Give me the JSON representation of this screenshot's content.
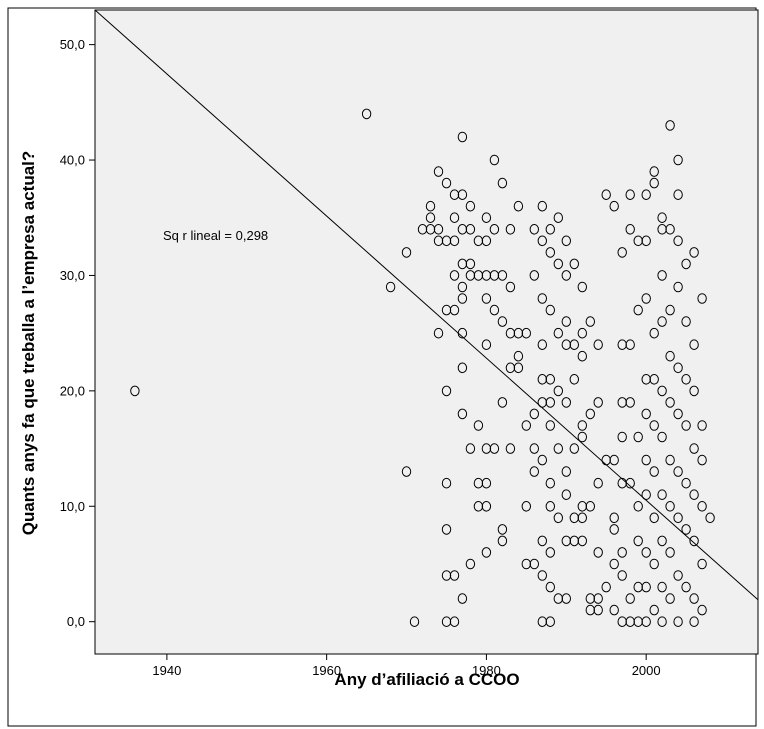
{
  "chart_data": {
    "type": "scatter",
    "title": "",
    "xlabel": "Any d’afiliació a CCOO",
    "ylabel": "Quants anys fa que treballa a l’empresa actual?",
    "xlim": [
      1931,
      2014
    ],
    "ylim": [
      -2.8,
      53.0
    ],
    "x_ticks": [
      {
        "value": 1940,
        "label": "1940"
      },
      {
        "value": 1960,
        "label": "1960"
      },
      {
        "value": 1980,
        "label": "1980"
      },
      {
        "value": 2000,
        "label": "2000"
      }
    ],
    "y_ticks": [
      {
        "value": 0,
        "label": "0,0"
      },
      {
        "value": 10,
        "label": "10,0"
      },
      {
        "value": 20,
        "label": "20,0"
      },
      {
        "value": 30,
        "label": "30,0"
      },
      {
        "value": 40,
        "label": "40,0"
      },
      {
        "value": 50,
        "label": "50,0"
      }
    ],
    "grid": false,
    "legend": "none",
    "annotation": "Sq r lineal = 0,298",
    "fit_line": {
      "x": [
        1931,
        2014
      ],
      "y": [
        53.0,
        1.9
      ]
    },
    "colors": {
      "plot_bg": "#f0f0f0",
      "marker_stroke": "#000000",
      "line": "#000000"
    },
    "points": [
      [
        1936,
        20
      ],
      [
        1965,
        44
      ],
      [
        1968,
        29
      ],
      [
        1970,
        32
      ],
      [
        1970,
        13
      ],
      [
        1971,
        0
      ],
      [
        1972,
        34
      ],
      [
        1973,
        35
      ],
      [
        1973,
        36
      ],
      [
        1973,
        34
      ],
      [
        1974,
        39
      ],
      [
        1974,
        34
      ],
      [
        1974,
        25
      ],
      [
        1974,
        33
      ],
      [
        1975,
        38
      ],
      [
        1975,
        33
      ],
      [
        1975,
        27
      ],
      [
        1975,
        20
      ],
      [
        1975,
        12
      ],
      [
        1975,
        8
      ],
      [
        1975,
        4
      ],
      [
        1975,
        0
      ],
      [
        1976,
        37
      ],
      [
        1976,
        35
      ],
      [
        1976,
        33
      ],
      [
        1976,
        30
      ],
      [
        1976,
        27
      ],
      [
        1976,
        4
      ],
      [
        1976,
        0
      ],
      [
        1977,
        42
      ],
      [
        1977,
        37
      ],
      [
        1977,
        34
      ],
      [
        1977,
        31
      ],
      [
        1977,
        29
      ],
      [
        1977,
        28
      ],
      [
        1977,
        25
      ],
      [
        1977,
        22
      ],
      [
        1977,
        18
      ],
      [
        1977,
        2
      ],
      [
        1978,
        36
      ],
      [
        1978,
        34
      ],
      [
        1978,
        31
      ],
      [
        1978,
        30
      ],
      [
        1978,
        15
      ],
      [
        1978,
        5
      ],
      [
        1979,
        33
      ],
      [
        1979,
        30
      ],
      [
        1979,
        17
      ],
      [
        1979,
        12
      ],
      [
        1979,
        10
      ],
      [
        1980,
        35
      ],
      [
        1980,
        33
      ],
      [
        1980,
        30
      ],
      [
        1980,
        28
      ],
      [
        1980,
        24
      ],
      [
        1980,
        15
      ],
      [
        1980,
        12
      ],
      [
        1980,
        10
      ],
      [
        1980,
        6
      ],
      [
        1981,
        40
      ],
      [
        1981,
        34
      ],
      [
        1981,
        30
      ],
      [
        1981,
        27
      ],
      [
        1981,
        15
      ],
      [
        1982,
        38
      ],
      [
        1982,
        30
      ],
      [
        1982,
        26
      ],
      [
        1982,
        19
      ],
      [
        1982,
        8
      ],
      [
        1982,
        7
      ],
      [
        1983,
        34
      ],
      [
        1983,
        29
      ],
      [
        1983,
        25
      ],
      [
        1983,
        22
      ],
      [
        1983,
        15
      ],
      [
        1984,
        36
      ],
      [
        1984,
        25
      ],
      [
        1984,
        23
      ],
      [
        1984,
        22
      ],
      [
        1985,
        25
      ],
      [
        1985,
        17
      ],
      [
        1985,
        10
      ],
      [
        1985,
        5
      ],
      [
        1986,
        34
      ],
      [
        1986,
        30
      ],
      [
        1986,
        18
      ],
      [
        1986,
        15
      ],
      [
        1986,
        13
      ],
      [
        1986,
        5
      ],
      [
        1987,
        36
      ],
      [
        1987,
        33
      ],
      [
        1987,
        28
      ],
      [
        1987,
        24
      ],
      [
        1987,
        21
      ],
      [
        1987,
        19
      ],
      [
        1987,
        14
      ],
      [
        1987,
        7
      ],
      [
        1987,
        4
      ],
      [
        1987,
        0
      ],
      [
        1988,
        34
      ],
      [
        1988,
        32
      ],
      [
        1988,
        27
      ],
      [
        1988,
        21
      ],
      [
        1988,
        19
      ],
      [
        1988,
        17
      ],
      [
        1988,
        12
      ],
      [
        1988,
        10
      ],
      [
        1988,
        6
      ],
      [
        1988,
        3
      ],
      [
        1988,
        0
      ],
      [
        1989,
        35
      ],
      [
        1989,
        31
      ],
      [
        1989,
        25
      ],
      [
        1989,
        20
      ],
      [
        1989,
        15
      ],
      [
        1989,
        9
      ],
      [
        1989,
        2
      ],
      [
        1990,
        33
      ],
      [
        1990,
        30
      ],
      [
        1990,
        26
      ],
      [
        1990,
        24
      ],
      [
        1990,
        19
      ],
      [
        1990,
        13
      ],
      [
        1990,
        11
      ],
      [
        1990,
        7
      ],
      [
        1990,
        2
      ],
      [
        1991,
        31
      ],
      [
        1991,
        24
      ],
      [
        1991,
        21
      ],
      [
        1991,
        15
      ],
      [
        1991,
        9
      ],
      [
        1991,
        7
      ],
      [
        1992,
        29
      ],
      [
        1992,
        25
      ],
      [
        1992,
        23
      ],
      [
        1992,
        17
      ],
      [
        1992,
        16
      ],
      [
        1992,
        10
      ],
      [
        1992,
        9
      ],
      [
        1992,
        7
      ],
      [
        1993,
        26
      ],
      [
        1993,
        18
      ],
      [
        1993,
        10
      ],
      [
        1993,
        2
      ],
      [
        1993,
        1
      ],
      [
        1994,
        24
      ],
      [
        1994,
        19
      ],
      [
        1994,
        12
      ],
      [
        1994,
        6
      ],
      [
        1994,
        2
      ],
      [
        1994,
        1
      ],
      [
        1995,
        37
      ],
      [
        1995,
        14
      ],
      [
        1995,
        3
      ],
      [
        1996,
        36
      ],
      [
        1996,
        14
      ],
      [
        1996,
        9
      ],
      [
        1996,
        8
      ],
      [
        1996,
        5
      ],
      [
        1996,
        1
      ],
      [
        1997,
        32
      ],
      [
        1997,
        24
      ],
      [
        1997,
        19
      ],
      [
        1997,
        16
      ],
      [
        1997,
        12
      ],
      [
        1997,
        6
      ],
      [
        1997,
        4
      ],
      [
        1997,
        0
      ],
      [
        1998,
        37
      ],
      [
        1998,
        34
      ],
      [
        1998,
        24
      ],
      [
        1998,
        19
      ],
      [
        1998,
        12
      ],
      [
        1998,
        2
      ],
      [
        1998,
        0
      ],
      [
        1999,
        33
      ],
      [
        1999,
        27
      ],
      [
        1999,
        16
      ],
      [
        1999,
        10
      ],
      [
        1999,
        7
      ],
      [
        1999,
        3
      ],
      [
        1999,
        0
      ],
      [
        2000,
        37
      ],
      [
        2000,
        33
      ],
      [
        2000,
        28
      ],
      [
        2000,
        21
      ],
      [
        2000,
        18
      ],
      [
        2000,
        14
      ],
      [
        2000,
        11
      ],
      [
        2000,
        6
      ],
      [
        2000,
        3
      ],
      [
        2000,
        0
      ],
      [
        2001,
        39
      ],
      [
        2001,
        38
      ],
      [
        2001,
        25
      ],
      [
        2001,
        21
      ],
      [
        2001,
        17
      ],
      [
        2001,
        13
      ],
      [
        2001,
        9
      ],
      [
        2001,
        5
      ],
      [
        2001,
        1
      ],
      [
        2002,
        35
      ],
      [
        2002,
        34
      ],
      [
        2002,
        30
      ],
      [
        2002,
        26
      ],
      [
        2002,
        20
      ],
      [
        2002,
        16
      ],
      [
        2002,
        11
      ],
      [
        2002,
        7
      ],
      [
        2002,
        3
      ],
      [
        2002,
        0
      ],
      [
        2003,
        43
      ],
      [
        2003,
        34
      ],
      [
        2003,
        27
      ],
      [
        2003,
        23
      ],
      [
        2003,
        19
      ],
      [
        2003,
        14
      ],
      [
        2003,
        10
      ],
      [
        2003,
        6
      ],
      [
        2003,
        2
      ],
      [
        2004,
        40
      ],
      [
        2004,
        37
      ],
      [
        2004,
        33
      ],
      [
        2004,
        29
      ],
      [
        2004,
        22
      ],
      [
        2004,
        18
      ],
      [
        2004,
        13
      ],
      [
        2004,
        9
      ],
      [
        2004,
        4
      ],
      [
        2004,
        0
      ],
      [
        2005,
        31
      ],
      [
        2005,
        26
      ],
      [
        2005,
        21
      ],
      [
        2005,
        17
      ],
      [
        2005,
        12
      ],
      [
        2005,
        8
      ],
      [
        2005,
        3
      ],
      [
        2006,
        32
      ],
      [
        2006,
        24
      ],
      [
        2006,
        20
      ],
      [
        2006,
        15
      ],
      [
        2006,
        11
      ],
      [
        2006,
        7
      ],
      [
        2006,
        2
      ],
      [
        2006,
        0
      ],
      [
        2007,
        28
      ],
      [
        2007,
        17
      ],
      [
        2007,
        14
      ],
      [
        2007,
        10
      ],
      [
        2007,
        5
      ],
      [
        2007,
        1
      ],
      [
        2008,
        9
      ]
    ]
  }
}
